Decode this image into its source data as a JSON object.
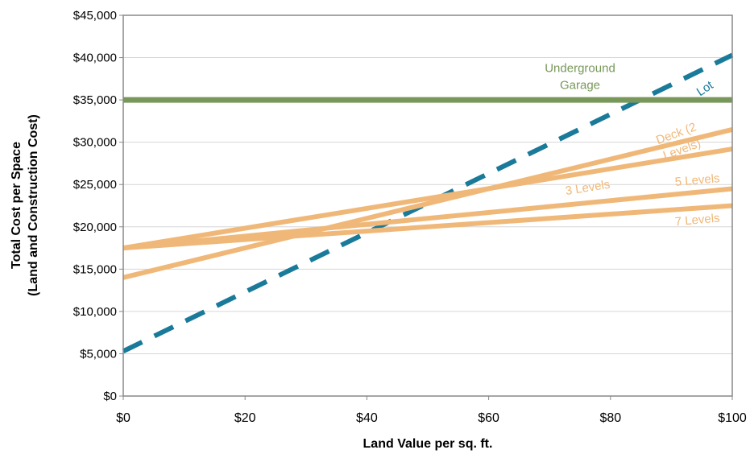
{
  "chart_data": {
    "type": "line",
    "xlabel": "Land Value per sq. ft.",
    "ylabel_line1": "Total Cost per Space",
    "ylabel_line2": "(Land and Construction Cost)",
    "xlim": [
      0,
      100
    ],
    "ylim": [
      0,
      45000
    ],
    "x_ticks": [
      0,
      20,
      40,
      60,
      80,
      100
    ],
    "x_tick_labels": [
      "$0",
      "$20",
      "$40",
      "$60",
      "$80",
      "$100"
    ],
    "y_ticks": [
      0,
      5000,
      10000,
      15000,
      20000,
      25000,
      30000,
      35000,
      40000,
      45000
    ],
    "y_tick_labels": [
      "$0",
      "$5,000",
      "$10,000",
      "$15,000",
      "$20,000",
      "$25,000",
      "$30,000",
      "$35,000",
      "$40,000",
      "$45,000"
    ],
    "grid": "horizontal",
    "legend": "none",
    "series": [
      {
        "name": "Lot",
        "x": [
          0,
          100
        ],
        "values": [
          5300,
          40300
        ],
        "color": "#1a7a9a",
        "style": "dashed"
      },
      {
        "name": "Underground Garage",
        "x": [
          0,
          100
        ],
        "values": [
          35000,
          35000
        ],
        "color": "#77985a",
        "style": "solid"
      },
      {
        "name": "Deck (2 Levels)",
        "x": [
          0,
          100
        ],
        "values": [
          14000,
          31500
        ],
        "color": "#f0b878",
        "style": "solid"
      },
      {
        "name": "3 Levels",
        "x": [
          0,
          100
        ],
        "values": [
          17500,
          29200
        ],
        "color": "#f0b878",
        "style": "solid"
      },
      {
        "name": "5 Levels",
        "x": [
          0,
          100
        ],
        "values": [
          17500,
          24500
        ],
        "color": "#f0b878",
        "style": "solid"
      },
      {
        "name": "7 Levels",
        "x": [
          0,
          100
        ],
        "values": [
          17500,
          22500
        ],
        "color": "#f0b878",
        "style": "solid"
      }
    ],
    "annotations": [
      {
        "series": "Lot",
        "lines": [
          "Lot"
        ],
        "color": "#1a7a9a"
      },
      {
        "series": "Underground Garage",
        "lines": [
          "Underground",
          "Garage"
        ],
        "color": "#77985a"
      },
      {
        "series": "Deck (2 Levels)",
        "lines": [
          "Deck (2",
          "Levels)"
        ],
        "color": "#f0b878"
      },
      {
        "series": "3 Levels",
        "lines": [
          "3 Levels"
        ],
        "color": "#f0b878"
      },
      {
        "series": "5 Levels",
        "lines": [
          "5 Levels"
        ],
        "color": "#f0b878"
      },
      {
        "series": "7 Levels",
        "lines": [
          "7 Levels"
        ],
        "color": "#f0b878"
      }
    ]
  }
}
